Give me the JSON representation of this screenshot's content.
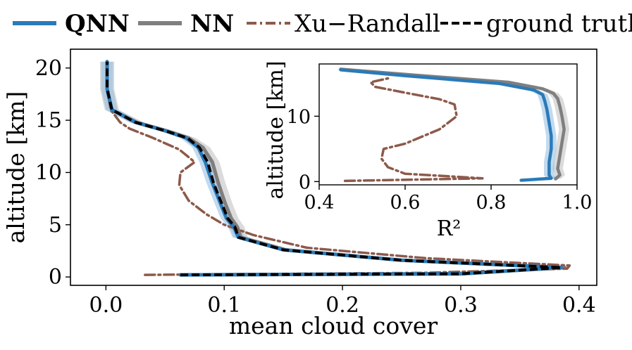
{
  "colors": {
    "qnn": "#2a7ab8",
    "nn": "#7f7f7f",
    "xu": "#8c5a4b",
    "truth": "#000000"
  },
  "legend": [
    {
      "label": "QNN",
      "key": "qnn",
      "dash": "solid",
      "bold": true
    },
    {
      "label": "NN",
      "key": "nn",
      "dash": "solid",
      "bold": true
    },
    {
      "label": "Xu−Randall",
      "key": "xu",
      "dash": "dashdot",
      "bold": false
    },
    {
      "label": "ground truth",
      "key": "truth",
      "dash": "dashed",
      "bold": false
    }
  ],
  "chart_data": [
    {
      "type": "line",
      "xlabel": "mean cloud cover",
      "ylabel": "altitude [km]",
      "xlim": [
        -0.03,
        0.415
      ],
      "ylim": [
        -0.8,
        21.8
      ],
      "xticks": [
        "0.0",
        "0.1",
        "0.2",
        "0.3",
        "0.4"
      ],
      "xtick_values": [
        0.0,
        0.1,
        0.2,
        0.3,
        0.4
      ],
      "yticks": [
        "0",
        "5",
        "10",
        "15",
        "20"
      ],
      "ytick_values": [
        0,
        5,
        10,
        15,
        20
      ],
      "grid": false,
      "legend_position": "top outside",
      "series": [
        {
          "name": "QNN",
          "key": "qnn",
          "x": [
            0.063,
            0.3,
            0.385,
            0.25,
            0.15,
            0.112,
            0.108,
            0.102,
            0.097,
            0.09,
            0.084,
            0.078,
            0.068,
            0.05,
            0.025,
            0.005,
            0.001,
            0.001
          ],
          "y": [
            0.2,
            0.3,
            0.9,
            1.6,
            2.6,
            3.8,
            4.8,
            5.6,
            7.0,
            9.0,
            11.0,
            12.4,
            13.3,
            14.0,
            14.8,
            16.0,
            18.0,
            20.6
          ]
        },
        {
          "name": "NN",
          "key": "nn",
          "x": [
            0.063,
            0.3,
            0.388,
            0.25,
            0.152,
            0.114,
            0.111,
            0.106,
            0.101,
            0.095,
            0.09,
            0.082,
            0.07,
            0.051,
            0.026,
            0.005,
            0.001,
            0.001
          ],
          "y": [
            0.2,
            0.3,
            0.9,
            1.6,
            2.6,
            3.8,
            4.8,
            5.6,
            7.0,
            9.0,
            11.0,
            12.4,
            13.3,
            14.0,
            14.8,
            16.0,
            18.0,
            20.6
          ]
        },
        {
          "name": "Xu−Randall",
          "key": "xu",
          "x": [
            0.033,
            0.27,
            0.39,
            0.392,
            0.27,
            0.17,
            0.125,
            0.1,
            0.085,
            0.07,
            0.062,
            0.063,
            0.075,
            0.062,
            0.04,
            0.02,
            0.012,
            0.004,
            0.001,
            0.001
          ],
          "y": [
            0.2,
            0.4,
            0.8,
            1.1,
            1.8,
            2.8,
            4.0,
            5.0,
            6.0,
            7.3,
            8.8,
            10.0,
            11.0,
            12.2,
            13.3,
            14.2,
            14.8,
            16.0,
            18.0,
            20.6
          ]
        },
        {
          "name": "ground truth",
          "key": "truth",
          "x": [
            0.063,
            0.3,
            0.385,
            0.25,
            0.15,
            0.112,
            0.109,
            0.103,
            0.098,
            0.091,
            0.086,
            0.079,
            0.069,
            0.05,
            0.025,
            0.005,
            0.001,
            0.001
          ],
          "y": [
            0.2,
            0.3,
            0.9,
            1.6,
            2.6,
            3.8,
            4.8,
            5.6,
            7.0,
            9.0,
            11.0,
            12.4,
            13.3,
            14.0,
            14.8,
            16.0,
            18.0,
            20.6
          ]
        }
      ]
    },
    {
      "type": "line",
      "xlabel": "R²",
      "ylabel": "altitude [km]",
      "xlim": [
        0.4,
        1.0
      ],
      "ylim": [
        -0.5,
        18.0
      ],
      "xticks": [
        "0.4",
        "0.6",
        "0.8",
        "1.0"
      ],
      "xtick_values": [
        0.4,
        0.6,
        0.8,
        1.0
      ],
      "yticks": [
        "0",
        "10"
      ],
      "ytick_values": [
        0,
        10
      ],
      "grid": false,
      "series": [
        {
          "name": "QNN",
          "key": "qnn",
          "x": [
            0.87,
            0.94,
            0.935,
            0.935,
            0.94,
            0.94,
            0.935,
            0.93,
            0.925,
            0.92,
            0.9,
            0.82,
            0.6,
            0.45
          ],
          "y": [
            0.2,
            0.5,
            1.0,
            3.0,
            5.0,
            7.0,
            9.0,
            11.0,
            12.3,
            13.3,
            14.0,
            15.0,
            16.2,
            17.1
          ]
        },
        {
          "name": "NN",
          "key": "nn",
          "x": [
            0.95,
            0.96,
            0.955,
            0.96,
            0.965,
            0.97,
            0.965,
            0.96,
            0.955,
            0.945,
            0.92,
            0.84,
            0.62,
            0.45
          ],
          "y": [
            0.4,
            1.0,
            2.0,
            4.0,
            6.0,
            8.0,
            10.0,
            11.5,
            12.7,
            13.5,
            14.2,
            15.2,
            16.3,
            17.2
          ]
        },
        {
          "name": "Xu−Randall",
          "key": "xu",
          "x": [
            0.46,
            0.78,
            0.6,
            0.56,
            0.545,
            0.55,
            0.6,
            0.68,
            0.72,
            0.715,
            0.68,
            0.6,
            0.53,
            0.52,
            0.56
          ],
          "y": [
            0.1,
            0.5,
            1.2,
            2.2,
            3.5,
            5.0,
            5.8,
            8.0,
            10.0,
            11.8,
            12.6,
            13.6,
            14.5,
            15.2,
            15.8
          ]
        }
      ]
    }
  ]
}
